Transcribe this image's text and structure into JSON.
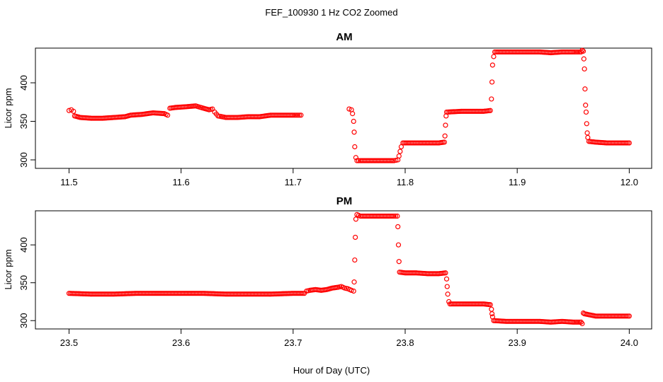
{
  "figure": {
    "title": "FEF_100930  1 Hz CO2 Zoomed",
    "xlabel": "Hour of Day (UTC)"
  },
  "chart_data": [
    {
      "type": "scatter",
      "title": "AM",
      "ylabel": "Licor ppm",
      "xlim": [
        11.47,
        12.02
      ],
      "ylim": [
        289,
        445
      ],
      "xticks": [
        11.5,
        11.6,
        11.7,
        11.8,
        11.9,
        12.0
      ],
      "xtick_labels": [
        "11.5",
        "11.6",
        "11.7",
        "11.8",
        "11.9",
        "12.0"
      ],
      "yticks": [
        300,
        350,
        400
      ],
      "ytick_labels": [
        "300",
        "350",
        "400"
      ],
      "marker_color": "#ff0000",
      "series": [
        {
          "values": [
            [
              11.5,
              364
            ],
            [
              11.502,
              365
            ],
            [
              11.504,
              363
            ],
            [
              11.505,
              357
            ],
            [
              11.51,
              355
            ],
            [
              11.52,
              354
            ],
            [
              11.53,
              354
            ],
            [
              11.54,
              355
            ],
            [
              11.55,
              356
            ],
            [
              11.555,
              358
            ],
            [
              11.565,
              359
            ],
            [
              11.575,
              361
            ],
            [
              11.585,
              360
            ],
            [
              11.588,
              358
            ],
            [
              11.59,
              367
            ],
            [
              11.595,
              368
            ],
            [
              11.605,
              369
            ],
            [
              11.613,
              370
            ],
            [
              11.62,
              367
            ],
            [
              11.625,
              365
            ],
            [
              11.628,
              366
            ],
            [
              11.63,
              362
            ],
            [
              11.633,
              357
            ],
            [
              11.64,
              355
            ],
            [
              11.65,
              355
            ],
            [
              11.66,
              356
            ],
            [
              11.67,
              356
            ],
            [
              11.68,
              358
            ],
            [
              11.69,
              358
            ],
            [
              11.7,
              358
            ],
            [
              11.707,
              358
            ]
          ]
        },
        {
          "values": [
            [
              11.75,
              366
            ],
            [
              11.752,
              365
            ],
            [
              11.753,
              360
            ],
            [
              11.754,
              350
            ],
            [
              11.7545,
              336
            ],
            [
              11.755,
              317
            ],
            [
              11.756,
              303
            ],
            [
              11.757,
              299
            ],
            [
              11.76,
              299
            ],
            [
              11.77,
              299
            ],
            [
              11.78,
              299
            ],
            [
              11.79,
              299
            ],
            [
              11.7935,
              300
            ],
            [
              11.7945,
              305
            ],
            [
              11.7955,
              311
            ],
            [
              11.7965,
              317
            ],
            [
              11.798,
              322
            ],
            [
              11.81,
              322
            ],
            [
              11.82,
              322
            ],
            [
              11.83,
              322
            ],
            [
              11.835,
              323
            ],
            [
              11.8355,
              331
            ],
            [
              11.836,
              345
            ],
            [
              11.8365,
              357
            ],
            [
              11.837,
              362
            ],
            [
              11.85,
              363
            ],
            [
              11.86,
              363
            ],
            [
              11.87,
              363
            ],
            [
              11.876,
              364
            ],
            [
              11.877,
              379
            ],
            [
              11.8775,
              401
            ],
            [
              11.878,
              423
            ],
            [
              11.879,
              434
            ],
            [
              11.88,
              440
            ],
            [
              11.89,
              440
            ],
            [
              11.9,
              440
            ],
            [
              11.91,
              440
            ],
            [
              11.92,
              440
            ],
            [
              11.93,
              439
            ],
            [
              11.94,
              440
            ],
            [
              11.95,
              440
            ],
            [
              11.957,
              440
            ],
            [
              11.958,
              442
            ],
            [
              11.959,
              441
            ],
            [
              11.9595,
              431
            ],
            [
              11.96,
              418
            ],
            [
              11.9605,
              392
            ],
            [
              11.961,
              371
            ],
            [
              11.9615,
              362
            ],
            [
              11.962,
              347
            ],
            [
              11.9625,
              335
            ],
            [
              11.963,
              329
            ],
            [
              11.964,
              324
            ],
            [
              11.97,
              323
            ],
            [
              11.98,
              322
            ],
            [
              11.99,
              322
            ],
            [
              12.0,
              322
            ]
          ]
        }
      ]
    },
    {
      "type": "scatter",
      "title": "PM",
      "ylabel": "Licor ppm",
      "xlim": [
        23.47,
        24.02
      ],
      "ylim": [
        289,
        445
      ],
      "xticks": [
        23.5,
        23.6,
        23.7,
        23.8,
        23.9,
        24.0
      ],
      "xtick_labels": [
        "23.5",
        "23.6",
        "23.7",
        "23.8",
        "23.9",
        "24.0"
      ],
      "yticks": [
        300,
        350,
        400
      ],
      "ytick_labels": [
        "300",
        "350",
        "400"
      ],
      "marker_color": "#ff0000",
      "series": [
        {
          "values": [
            [
              23.5,
              336
            ],
            [
              23.52,
              335
            ],
            [
              23.54,
              335
            ],
            [
              23.56,
              336
            ],
            [
              23.58,
              336
            ],
            [
              23.6,
              336
            ],
            [
              23.62,
              336
            ],
            [
              23.64,
              335
            ],
            [
              23.66,
              335
            ],
            [
              23.68,
              335
            ],
            [
              23.7,
              336
            ],
            [
              23.71,
              336
            ],
            [
              23.712,
              339
            ],
            [
              23.715,
              340
            ],
            [
              23.72,
              341
            ],
            [
              23.725,
              340
            ],
            [
              23.73,
              341
            ],
            [
              23.735,
              343
            ],
            [
              23.74,
              344
            ],
            [
              23.743,
              345
            ],
            [
              23.746,
              343
            ],
            [
              23.749,
              342
            ],
            [
              23.752,
              340
            ],
            [
              23.754,
              339
            ],
            [
              23.7545,
              351
            ],
            [
              23.755,
              380
            ],
            [
              23.7555,
              410
            ],
            [
              23.756,
              434
            ],
            [
              23.757,
              440
            ],
            [
              23.76,
              438
            ],
            [
              23.77,
              438
            ],
            [
              23.78,
              438
            ],
            [
              23.79,
              438
            ],
            [
              23.793,
              438
            ],
            [
              23.7935,
              424
            ],
            [
              23.794,
              400
            ],
            [
              23.7945,
              378
            ],
            [
              23.795,
              364
            ],
            [
              23.8,
              363
            ],
            [
              23.81,
              363
            ],
            [
              23.82,
              362
            ],
            [
              23.83,
              362
            ],
            [
              23.836,
              363
            ],
            [
              23.837,
              355
            ],
            [
              23.8375,
              345
            ],
            [
              23.838,
              335
            ],
            [
              23.839,
              325
            ],
            [
              23.84,
              322
            ],
            [
              23.85,
              322
            ],
            [
              23.86,
              322
            ],
            [
              23.87,
              322
            ],
            [
              23.876,
              321
            ],
            [
              23.877,
              315
            ],
            [
              23.8775,
              309
            ],
            [
              23.878,
              305
            ],
            [
              23.879,
              300
            ],
            [
              23.89,
              299
            ],
            [
              23.9,
              299
            ],
            [
              23.91,
              299
            ],
            [
              23.92,
              299
            ],
            [
              23.93,
              298
            ],
            [
              23.94,
              299
            ],
            [
              23.95,
              298
            ],
            [
              23.957,
              298
            ],
            [
              23.958,
              296
            ],
            [
              23.959,
              310
            ],
            [
              23.96,
              309
            ],
            [
              23.97,
              306
            ],
            [
              23.98,
              306
            ],
            [
              23.99,
              306
            ],
            [
              24.0,
              306
            ]
          ]
        }
      ]
    }
  ]
}
